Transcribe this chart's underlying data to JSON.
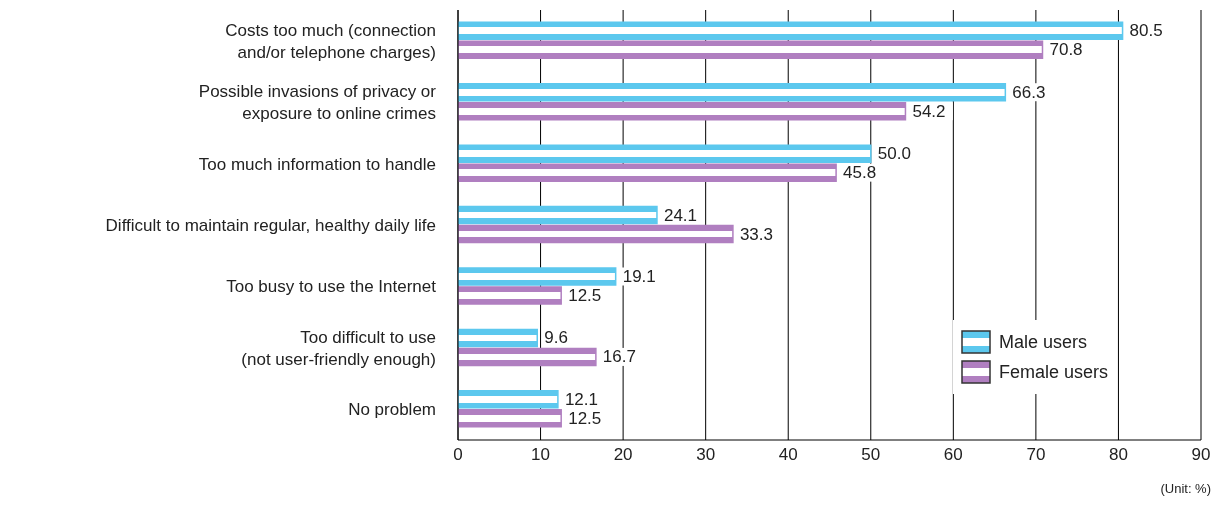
{
  "chart_data": {
    "type": "bar",
    "orientation": "horizontal",
    "categories": [
      "Costs too much (connection\nand/or telephone charges)",
      "Possible invasions of privacy or\nexposure to online crimes",
      "Too much information to handle",
      "Difficult to maintain regular, healthy daily life",
      "Too busy to use the Internet",
      "Too difficult to use\n(not user-friendly enough)",
      "No problem"
    ],
    "series": [
      {
        "name": "Male users",
        "color": "#5cc8ee",
        "values": [
          80.5,
          66.3,
          50.0,
          24.1,
          19.1,
          9.6,
          12.1
        ],
        "value_labels": [
          "80.5",
          "66.3",
          "50.0",
          "24.1",
          "19.1",
          "9.6",
          "12.1"
        ]
      },
      {
        "name": "Female users",
        "color": "#b07fc0",
        "values": [
          70.8,
          54.2,
          45.8,
          33.3,
          12.5,
          16.7,
          12.5
        ],
        "value_labels": [
          "70.8",
          "54.2",
          "45.8",
          "33.3",
          "12.5",
          "16.7",
          "12.5"
        ]
      }
    ],
    "xlim": [
      0,
      90
    ],
    "xticks": [
      0,
      10,
      20,
      30,
      40,
      50,
      60,
      70,
      80,
      90
    ],
    "grid": "x",
    "legend": "bottom right",
    "annotations": [
      "(Unit: %)"
    ]
  }
}
